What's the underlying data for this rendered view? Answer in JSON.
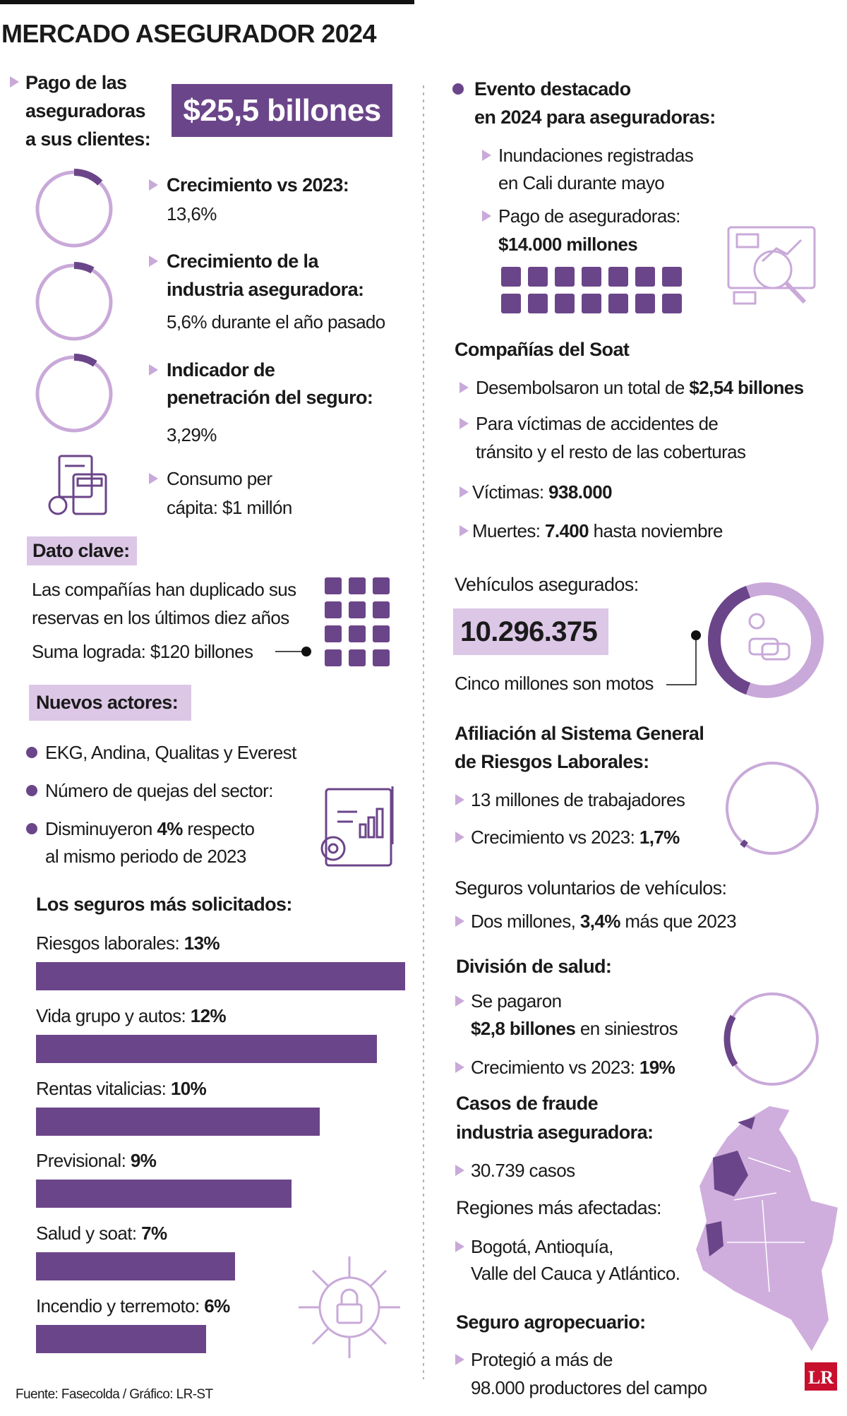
{
  "header": {
    "title": "MERCADO ASEGURADOR 2024"
  },
  "left": {
    "payment": {
      "label": [
        "Pago de las",
        "aseguradoras",
        "a sus clientes:"
      ],
      "amount": "$25,5 billones"
    },
    "stats": [
      {
        "title": [
          "Crecimiento vs 2023:"
        ],
        "detail": "13,6%"
      },
      {
        "title": [
          "Crecimiento de la",
          "industria aseguradora:"
        ],
        "detail": "5,6% durante el año pasado"
      },
      {
        "title": [
          "Indicador de",
          "penetración del seguro:"
        ],
        "detail": "3,29%"
      }
    ],
    "consumption": [
      "Consumo per",
      "cápita: $1 millón"
    ],
    "key_fact": {
      "heading": "Dato clave:",
      "lines": [
        "Las compañías han duplicado sus",
        "reservas en los últimos diez años"
      ],
      "sum": "Suma lograda: $120 billones"
    },
    "new_actors": {
      "heading": "Nuevos actores:",
      "items": [
        "EKG, Andina, Qualitas y Everest",
        "Número de quejas del sector:"
      ],
      "decrease": [
        "Disminuyeron ",
        "4%",
        " respecto",
        "al mismo periodo de 2023"
      ]
    },
    "ranking": {
      "title": "Los seguros más solicitados:",
      "categories": [
        "Riesgos laborales: ",
        "Vida grupo y autos: ",
        "Rentas vitalicias: ",
        "Previsional: ",
        "Salud y soat: ",
        "Incendio y terremoto: "
      ],
      "values": [
        13,
        12,
        10,
        9,
        7,
        6
      ],
      "value_labels": [
        "13%",
        "12%",
        "10%",
        "9%",
        "7%",
        "6%"
      ],
      "color": "#6b4589"
    },
    "source": "Fuente: Fasecolda / Gráfico: LR-ST"
  },
  "right": {
    "event": {
      "heading": [
        "Evento destacado",
        "en 2024 para aseguradoras:"
      ],
      "flood": [
        "Inundaciones registradas",
        "en Cali durante mayo"
      ],
      "payment": [
        "Pago de aseguradoras:",
        "$14.000 millones"
      ]
    },
    "soat": {
      "heading": "Compañías del Soat",
      "disbursed": [
        "Desembolsaron un total de ",
        "$2,54 billones"
      ],
      "purpose": [
        "Para víctimas de accidentes de",
        "tránsito y el resto de las coberturas"
      ],
      "victims": [
        "Víctimas: ",
        "938.000"
      ],
      "deaths": [
        "Muertes: ",
        "7.400",
        " hasta noviembre"
      ]
    },
    "vehicles": {
      "heading": "Vehículos asegurados:",
      "total": "10.296.375",
      "note": "Cinco millones son motos"
    },
    "arl": {
      "heading": [
        "Afiliación al Sistema General",
        "de Riesgos Laborales:"
      ],
      "workers": "13 millones de trabajadores",
      "growth": [
        "Crecimiento vs 2023: ",
        "1,7%"
      ]
    },
    "voluntary": {
      "heading": "Seguros voluntarios de vehículos:",
      "text": [
        "Dos millones, ",
        "3,4%",
        " más que 2023"
      ]
    },
    "health": {
      "heading": "División de salud:",
      "paid": [
        "Se pagaron",
        "$2,8 billones",
        " en siniestros"
      ],
      "growth": [
        "Crecimiento vs 2023: ",
        "19%"
      ]
    },
    "fraud": {
      "heading": [
        "Casos de fraude",
        "industria aseguradora:"
      ],
      "cases": "30.739 casos",
      "regions_heading": "Regiones más afectadas:",
      "regions": [
        "Bogotá, Antioquía,",
        "Valle del Cauca y Atlántico."
      ]
    },
    "agro": {
      "heading": "Seguro agropecuario:",
      "text": [
        "Protegió a más de",
        "98.000 productores del campo"
      ]
    },
    "logo": "LR"
  }
}
